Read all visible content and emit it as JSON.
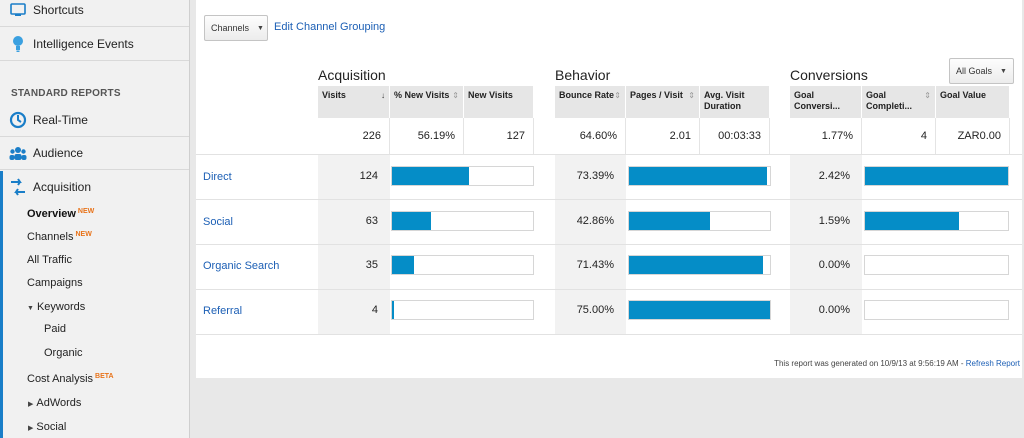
{
  "sidebar": {
    "top_items": [
      {
        "label": "Shortcuts",
        "icon": "shortcuts-icon"
      },
      {
        "label": "Intelligence Events",
        "icon": "lightbulb-icon"
      }
    ],
    "section_label": "STANDARD REPORTS",
    "items": [
      {
        "label": "Real-Time",
        "icon": "realtime-icon"
      },
      {
        "label": "Audience",
        "icon": "audience-icon"
      },
      {
        "label": "Acquisition",
        "icon": "acquisition-icon"
      }
    ],
    "sub_items": {
      "overview": "Overview",
      "overview_badge": "NEW",
      "channels": "Channels",
      "channels_badge": "NEW",
      "all_traffic": "All Traffic",
      "campaigns": "Campaigns",
      "keywords": "Keywords",
      "paid": "Paid",
      "organic": "Organic",
      "cost_analysis": "Cost Analysis",
      "cost_analysis_badge": "BETA",
      "adwords": "AdWords",
      "social": "Social"
    }
  },
  "toolbar": {
    "grouping_dropdown": "Channels",
    "edit_link": "Edit Channel Grouping",
    "goals_dropdown": "All Goals"
  },
  "groups": {
    "acquisition": "Acquisition",
    "behavior": "Behavior",
    "conversions": "Conversions"
  },
  "columns": {
    "visits": "Visits",
    "visits_sort": "↓",
    "pct_new_visits": "% New Visits",
    "new_visits": "New Visits",
    "bounce_rate": "Bounce Rate",
    "pages_visit": "Pages / Visit",
    "avg_visit_duration": "Avg. Visit Duration",
    "goal_conversion": "Goal Conversi...",
    "goal_completions": "Goal Completi...",
    "goal_value": "Goal Value"
  },
  "totals": {
    "visits": "226",
    "pct_new_visits": "56.19%",
    "new_visits": "127",
    "bounce_rate": "64.60%",
    "pages_visit": "2.01",
    "avg_visit_duration": "00:03:33",
    "goal_conversion": "1.77%",
    "goal_completions": "4",
    "goal_value": "ZAR0.00"
  },
  "rows": [
    {
      "channel": "Direct",
      "visits": "124",
      "visits_share": 0.5487,
      "bounce_rate": "73.39%",
      "bounce_share": 0.9786,
      "goal_conversion": "2.42%",
      "conversion_share": 1.0
    },
    {
      "channel": "Social",
      "visits": "63",
      "visits_share": 0.2788,
      "bounce_rate": "42.86%",
      "bounce_share": 0.5715,
      "goal_conversion": "1.59%",
      "conversion_share": 0.657
    },
    {
      "channel": "Organic Search",
      "visits": "35",
      "visits_share": 0.1549,
      "bounce_rate": "71.43%",
      "bounce_share": 0.9524,
      "goal_conversion": "0.00%",
      "conversion_share": 0
    },
    {
      "channel": "Referral",
      "visits": "4",
      "visits_share": 0.0177,
      "bounce_rate": "75.00%",
      "bounce_share": 1.0,
      "goal_conversion": "0.00%",
      "conversion_share": 0
    }
  ],
  "footer": {
    "generated_text": "This report was generated on 10/9/13 at 9:56:19 AM - ",
    "refresh_link": "Refresh Report"
  },
  "colors": {
    "bar": "#058dc7",
    "link": "#1c5fb5",
    "accent": "#1a7ec8",
    "badge": "#e8731a"
  }
}
